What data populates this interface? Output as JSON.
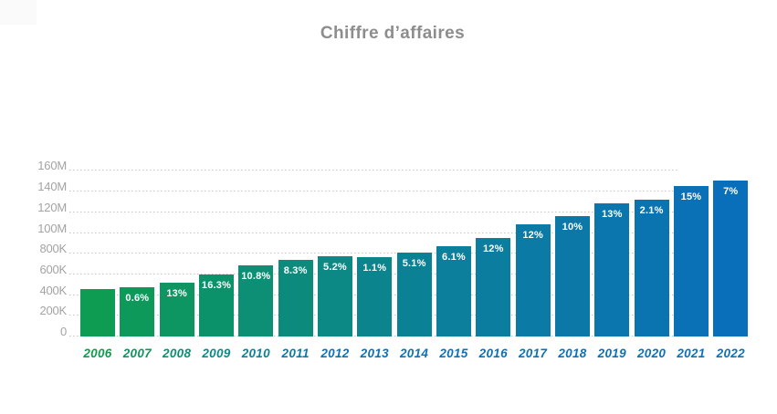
{
  "page": {
    "title": "Chiffre d’affaires"
  },
  "chart_data": {
    "type": "bar",
    "title": "Chiffre d’affaires",
    "xlabel": "",
    "ylabel": "",
    "categories": [
      "2006",
      "2007",
      "2008",
      "2009",
      "2010",
      "2011",
      "2012",
      "2013",
      "2014",
      "2015",
      "2016",
      "2017",
      "2018",
      "2019",
      "2020",
      "2021",
      "2022"
    ],
    "values": [
      46,
      48,
      52,
      59.5,
      68.5,
      74,
      77.5,
      76.5,
      81,
      87.5,
      95.5,
      108,
      116.5,
      129,
      132,
      145.5,
      150.5
    ],
    "values_unit": "millions (estimated from gridlines, 1 tick = 20M)",
    "bar_labels": [
      "",
      "0.6%",
      "13%",
      "16.3%",
      "10.8%",
      "8.3%",
      "5.2%",
      "1.1%",
      "5.1%",
      "6.1%",
      "12%",
      "12%",
      "10%",
      "13%",
      "2.1%",
      "15%",
      "7%"
    ],
    "yticks": [
      "0",
      "200K",
      "400K",
      "600K",
      "800K",
      "100M",
      "120M",
      "140M",
      "160M"
    ],
    "ylim": [
      0,
      160
    ],
    "grid": "horizontal dotted",
    "legend": "none",
    "colors": {
      "bar_gradient": [
        "#0D9C51",
        "#0B8196",
        "#0A6FBA"
      ],
      "year_label_gradient": [
        "#119A4E",
        "#0B8B84",
        "#0D72B5"
      ],
      "title": "#8D8D8D",
      "axis_label": "#A3A3A3",
      "gridline": "#C4C4C4",
      "bar_value_label": "#FFFFFF",
      "corner_box": "#FAFAFA"
    }
  }
}
